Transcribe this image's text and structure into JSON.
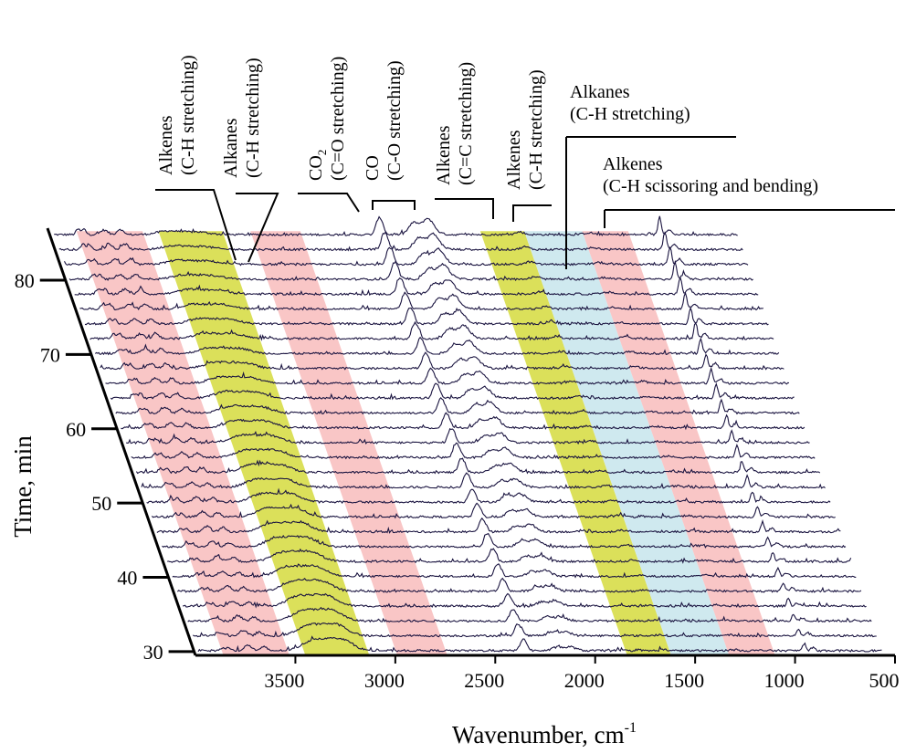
{
  "chart_data": {
    "type": "waterfall",
    "title": "",
    "xlabel": "Wavenumber, cm",
    "xlabel_sup": "-1",
    "ylabel": "Time, min",
    "x_ticks": [
      3500,
      3000,
      2500,
      2000,
      1500,
      1000,
      500
    ],
    "x_range": [
      4000,
      500
    ],
    "x_reversed": true,
    "y_ticks": [
      30,
      40,
      50,
      60,
      70,
      80
    ],
    "y_range": [
      29.5,
      87
    ],
    "spectrum_start_min": 30,
    "spectrum_step_min": 2,
    "spectrum_count": 29,
    "band_colors": {
      "pink": "#f9c6c6",
      "yellow": "#dbe05a",
      "blue": "#cfe9ef"
    },
    "line_color": "#1a1440",
    "bands": [
      {
        "color": "pink",
        "from": 3860,
        "to": 3530
      },
      {
        "color": "yellow",
        "from": 3450,
        "to": 3130
      },
      {
        "color": "pink",
        "from": 2990,
        "to": 2740
      },
      {
        "color": "yellow",
        "from": 1840,
        "to": 1620
      },
      {
        "color": "blue",
        "from": 1620,
        "to": 1330
      },
      {
        "color": "pink",
        "from": 1330,
        "to": 1100
      }
    ],
    "peaks": [
      {
        "center": 3860,
        "width": 10,
        "height": [
          3,
          6
        ]
      },
      {
        "center": 3830,
        "width": 10,
        "height": [
          3,
          6
        ]
      },
      {
        "center": 3730,
        "width": 18,
        "height": [
          6,
          5
        ]
      },
      {
        "center": 3650,
        "width": 15,
        "height": [
          4,
          6
        ]
      },
      {
        "center": 3420,
        "width": 50,
        "height": [
          6,
          3
        ]
      },
      {
        "center": 3340,
        "width": 70,
        "height": [
          10,
          2
        ]
      },
      {
        "center": 3250,
        "width": 50,
        "height": [
          8,
          2
        ]
      },
      {
        "center": 2360,
        "width": 12,
        "height": [
          10,
          14
        ]
      },
      {
        "center": 2340,
        "width": 12,
        "height": [
          7,
          12
        ]
      },
      {
        "center": 2180,
        "width": 25,
        "height": [
          4,
          13
        ]
      },
      {
        "center": 2115,
        "width": 25,
        "height": [
          4,
          13
        ]
      },
      {
        "center": 2090,
        "width": 30,
        "height": [
          0,
          6
        ]
      },
      {
        "center": 1650,
        "width": 20,
        "height": [
          1,
          3
        ]
      },
      {
        "center": 1305,
        "width": 25,
        "height": [
          1,
          2
        ]
      },
      {
        "center": 950,
        "width": 8,
        "height": [
          7,
          20
        ]
      },
      {
        "center": 905,
        "width": 12,
        "height": [
          3,
          6
        ]
      }
    ],
    "annotations": [
      {
        "lines": [
          "Alkenes",
          "(C-H stretching)"
        ],
        "rotated": true
      },
      {
        "lines": [
          "Alkanes",
          "(C-H stretching)"
        ],
        "rotated": true
      },
      {
        "lines": [
          "CO",
          "(C=O stretching)"
        ],
        "sub_on_first": "2",
        "rotated": true
      },
      {
        "lines": [
          "CO",
          "(C-O stretching)"
        ],
        "rotated": true
      },
      {
        "lines": [
          "Alkenes",
          "(C=C stretching)"
        ],
        "rotated": true
      },
      {
        "lines": [
          "Alkenes",
          "(C-H stretching)"
        ],
        "rotated": true
      },
      {
        "lines": [
          "Alkanes",
          "(C-H stretching)"
        ],
        "rotated": false
      },
      {
        "lines": [
          "Alkenes",
          "(C-H scissoring and bending)"
        ],
        "rotated": false
      }
    ]
  }
}
